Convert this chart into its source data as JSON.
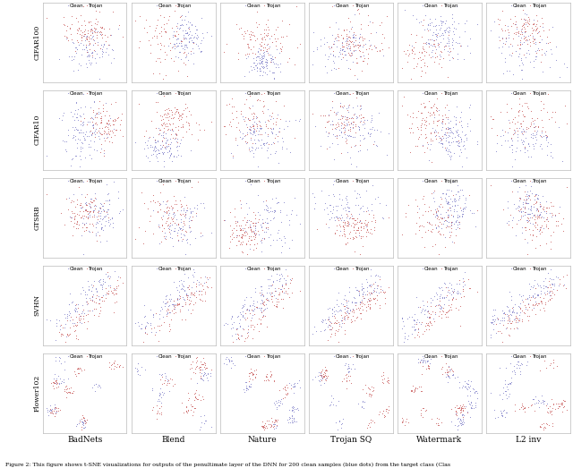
{
  "rows": [
    "CIFAR100",
    "CIFAR10",
    "GTSRB",
    "SVHN",
    "Flower102"
  ],
  "cols": [
    "BadNets",
    "Blend",
    "Nature",
    "Trojan SQ",
    "Watermark",
    "L2 inv"
  ],
  "figsize": [
    6.4,
    5.23
  ],
  "dpi": 100,
  "clean_color": "#8888cc",
  "trojan_color": "#cc6666",
  "marker_size": 1.8,
  "caption": "Figure 2: This figure shows t-SNE visualizations for outputs of the penultimate layer of the DNN for 200 clean samples (blue dots) from the target class (Clas",
  "row_label_fontsize": 5.5,
  "col_label_fontsize": 6.5,
  "legend_fontsize": 4.0,
  "caption_fontsize": 4.5,
  "grid_color": "#cccccc",
  "seed": 42
}
